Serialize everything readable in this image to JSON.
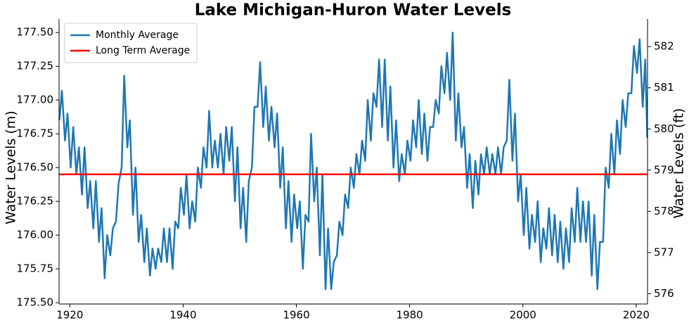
{
  "chart_data": {
    "type": "line",
    "title": "Lake Michigan-Huron Water Levels",
    "ylabel": "Water Levels (m)",
    "y2label": "Water Levels (ft)",
    "xlim": [
      1918.1,
      2022
    ],
    "xticks": [
      1920,
      1940,
      1960,
      1980,
      2000,
      2020
    ],
    "ylim": [
      175.49,
      177.6
    ],
    "yticks": [
      {
        "value": 175.5,
        "label": "175.50"
      },
      175.75,
      {
        "value": 176,
        "label": "176.00"
      },
      176.25,
      {
        "value": 176.5,
        "label": "176.50"
      },
      176.75,
      {
        "value": 177,
        "label": "177.00"
      },
      177.25,
      {
        "value": 177.5,
        "label": "177.50"
      }
    ],
    "y2lim": [
      575.75,
      582.67
    ],
    "y2ticks": [
      576,
      577,
      578,
      579,
      580,
      581,
      582
    ],
    "legend": "upper left",
    "x": [
      1918.15,
      1918.6,
      1919.15,
      1919.6,
      1920.15,
      1920.6,
      1921.15,
      1921.6,
      1922.15,
      1922.6,
      1923.15,
      1923.6,
      1924.15,
      1924.6,
      1925.15,
      1925.6,
      1926.15,
      1926.6,
      1927.15,
      1927.6,
      1928.15,
      1928.6,
      1929.15,
      1929.6,
      1930.15,
      1930.6,
      1931.15,
      1931.6,
      1932.15,
      1932.6,
      1933.15,
      1933.6,
      1934.15,
      1934.6,
      1935.15,
      1935.6,
      1936.15,
      1936.6,
      1937.15,
      1937.6,
      1938.15,
      1938.6,
      1939.15,
      1939.6,
      1940.15,
      1940.6,
      1941.15,
      1941.6,
      1942.15,
      1942.6,
      1943.15,
      1943.6,
      1944.15,
      1944.6,
      1945.15,
      1945.6,
      1946.15,
      1946.6,
      1947.15,
      1947.6,
      1948.15,
      1948.6,
      1949.15,
      1949.6,
      1950.15,
      1950.6,
      1951.15,
      1951.6,
      1952.15,
      1952.6,
      1953.15,
      1953.6,
      1954.15,
      1954.6,
      1955.15,
      1955.6,
      1956.15,
      1956.6,
      1957.15,
      1957.6,
      1958.15,
      1958.6,
      1959.15,
      1959.6,
      1960.15,
      1960.6,
      1961.15,
      1961.6,
      1962.15,
      1962.6,
      1963.15,
      1963.6,
      1964.15,
      1964.6,
      1965.15,
      1965.6,
      1966.15,
      1966.6,
      1967.15,
      1967.6,
      1968.15,
      1968.6,
      1969.15,
      1969.6,
      1970.15,
      1970.6,
      1971.15,
      1971.6,
      1972.15,
      1972.6,
      1973.15,
      1973.6,
      1974.15,
      1974.6,
      1975.15,
      1975.6,
      1976.15,
      1976.6,
      1977.15,
      1977.6,
      1978.15,
      1978.6,
      1979.15,
      1979.6,
      1980.15,
      1980.6,
      1981.15,
      1981.6,
      1982.15,
      1982.6,
      1983.15,
      1983.6,
      1984.15,
      1984.6,
      1985.15,
      1985.6,
      1986.15,
      1986.6,
      1987.15,
      1987.6,
      1988.15,
      1988.6,
      1989.15,
      1989.6,
      1990.15,
      1990.6,
      1991.15,
      1991.6,
      1992.15,
      1992.6,
      1993.15,
      1993.6,
      1994.15,
      1994.6,
      1995.15,
      1995.6,
      1996.15,
      1996.6,
      1997.15,
      1997.6,
      1998.15,
      1998.6,
      1999.15,
      1999.6,
      2000.15,
      2000.6,
      2001.15,
      2001.6,
      2002.15,
      2002.6,
      2003.15,
      2003.6,
      2004.15,
      2004.6,
      2005.15,
      2005.6,
      2006.15,
      2006.6,
      2007.15,
      2007.6,
      2008.15,
      2008.6,
      2009.15,
      2009.6,
      2010.15,
      2010.6,
      2011.15,
      2011.6,
      2012.15,
      2012.6,
      2013.15,
      2013.6,
      2014.15,
      2014.6,
      2015.15,
      2015.6,
      2016.15,
      2016.6,
      2017.15,
      2017.6,
      2018.15,
      2018.6,
      2019.15,
      2019.6,
      2020.15,
      2020.6,
      2021.15,
      2021.6,
      2021.95
    ],
    "series": [
      {
        "name": "Monthly Average",
        "color": "#1f77b4",
        "values": [
          176.85,
          177.07,
          176.7,
          176.9,
          176.5,
          176.8,
          176.45,
          176.65,
          176.3,
          176.65,
          176.2,
          176.4,
          176.05,
          176.4,
          175.95,
          176.2,
          175.68,
          176.0,
          175.85,
          176.05,
          176.1,
          176.38,
          176.5,
          177.18,
          176.65,
          176.85,
          176.15,
          176.5,
          175.95,
          176.15,
          175.8,
          176.05,
          175.7,
          175.9,
          175.75,
          175.9,
          175.8,
          176.05,
          175.8,
          176.05,
          175.75,
          176.1,
          176.05,
          176.35,
          176.15,
          176.45,
          176.05,
          176.25,
          176.1,
          176.5,
          176.35,
          176.65,
          176.5,
          176.92,
          176.5,
          176.7,
          176.5,
          176.75,
          176.45,
          176.8,
          176.55,
          176.8,
          176.25,
          176.65,
          176.05,
          176.35,
          175.95,
          176.4,
          176.5,
          176.95,
          176.95,
          177.28,
          176.8,
          177.1,
          176.7,
          176.95,
          176.65,
          176.9,
          176.35,
          176.65,
          176.05,
          176.4,
          175.95,
          176.3,
          176.05,
          176.25,
          175.75,
          176.15,
          176.1,
          176.75,
          176.25,
          176.5,
          175.85,
          176.45,
          175.6,
          176.05,
          175.6,
          175.8,
          175.85,
          176.1,
          176.0,
          176.3,
          176.2,
          176.5,
          176.35,
          176.6,
          176.45,
          176.7,
          176.55,
          177.0,
          176.7,
          177.05,
          176.95,
          177.3,
          176.8,
          177.3,
          176.7,
          177.1,
          176.5,
          176.85,
          176.4,
          176.6,
          176.45,
          176.7,
          176.55,
          176.85,
          176.65,
          177.0,
          176.6,
          176.9,
          176.55,
          176.8,
          176.8,
          177.0,
          176.9,
          177.25,
          177.05,
          177.35,
          177.0,
          177.5,
          176.7,
          177.05,
          176.65,
          176.8,
          176.35,
          176.6,
          176.2,
          176.55,
          176.3,
          176.6,
          176.45,
          176.65,
          176.45,
          176.6,
          176.45,
          176.65,
          176.45,
          176.65,
          176.7,
          177.15,
          176.55,
          176.9,
          176.25,
          176.45,
          176.0,
          176.35,
          175.9,
          176.15,
          175.95,
          176.25,
          175.8,
          176.05,
          175.9,
          176.2,
          175.85,
          176.15,
          175.8,
          176.1,
          175.75,
          176.05,
          175.8,
          176.2,
          175.95,
          176.35,
          175.95,
          176.25,
          175.95,
          176.25,
          175.7,
          176.15,
          175.6,
          175.95,
          175.95,
          176.5,
          176.35,
          176.75,
          176.45,
          176.85,
          176.6,
          177.0,
          176.8,
          177.05,
          177.05,
          177.4,
          177.2,
          177.45,
          176.95,
          177.3,
          176.72
        ]
      }
    ],
    "reference_line": {
      "name": "Long Term Average",
      "color": "#ff0000",
      "value": 176.45
    }
  }
}
